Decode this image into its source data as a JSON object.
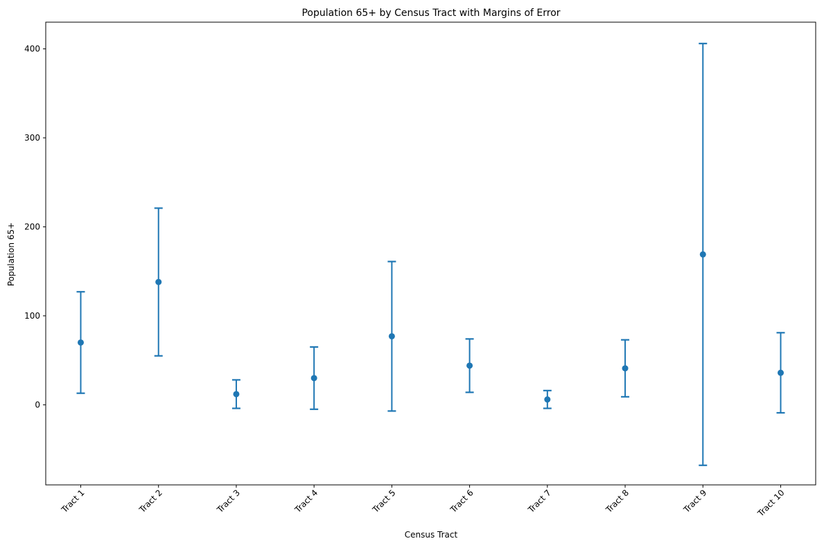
{
  "chart_data": {
    "type": "errorbar",
    "title": "Population 65+ by Census Tract with Margins of Error",
    "xlabel": "Census Tract",
    "ylabel": "Population 65+",
    "categories": [
      "Tract 1",
      "Tract 2",
      "Tract 3",
      "Tract 4",
      "Tract 5",
      "Tract 6",
      "Tract 7",
      "Tract 8",
      "Tract 9",
      "Tract 10"
    ],
    "values": [
      70,
      138,
      12,
      30,
      77,
      44,
      6,
      41,
      169,
      36
    ],
    "errors": [
      57,
      83,
      16,
      35,
      84,
      30,
      10,
      32,
      237,
      45
    ],
    "ylim": [
      -90,
      430
    ],
    "yticks": [
      0,
      100,
      200,
      300,
      400
    ],
    "color": "#1f77b4",
    "grid": false,
    "xtick_rotation": 45
  }
}
